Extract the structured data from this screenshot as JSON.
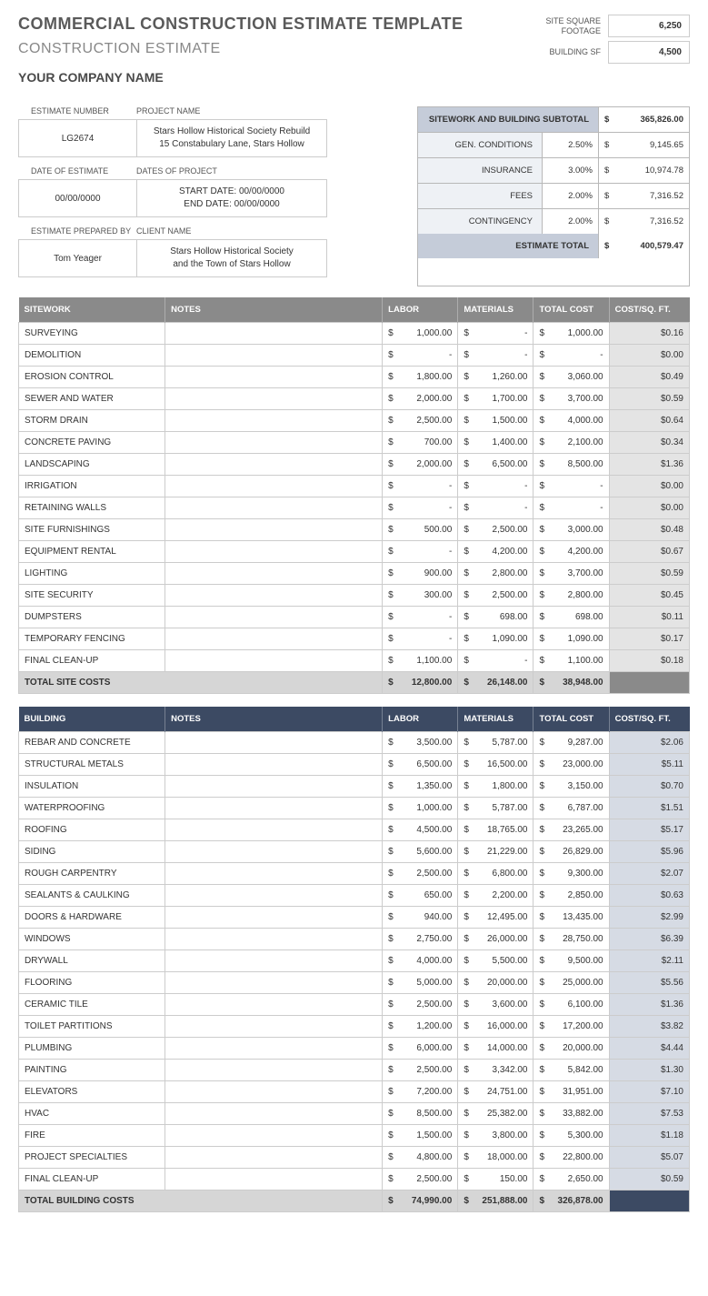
{
  "main_title": "COMMERCIAL CONSTRUCTION ESTIMATE TEMPLATE",
  "subtitle": "CONSTRUCTION ESTIMATE",
  "company_name": "YOUR COMPANY NAME",
  "sf": {
    "site_label": "SITE SQUARE FOOTAGE",
    "site_value": "6,250",
    "building_label": "BUILDING SF",
    "building_value": "4,500"
  },
  "info": [
    {
      "h1": "ESTIMATE NUMBER",
      "h2": "PROJECT NAME",
      "v1": "LG2674",
      "v2": "Stars Hollow Historical Society Rebuild\n15 Constabulary Lane, Stars Hollow"
    },
    {
      "h1": "DATE OF ESTIMATE",
      "h2": "DATES OF PROJECT",
      "v1": "00/00/0000",
      "v2": "START DATE: 00/00/0000\nEND DATE: 00/00/0000"
    },
    {
      "h1": "ESTIMATE PREPARED BY",
      "h2": "CLIENT NAME",
      "v1": "Tom Yeager",
      "v2": "Stars Hollow Historical Society\nand the Town of Stars Hollow"
    }
  ],
  "summary": {
    "subtotal_label": "SITEWORK AND BUILDING SUBTOTAL",
    "subtotal": "365,826.00",
    "rows": [
      {
        "label": "GEN. CONDITIONS",
        "pct": "2.50%",
        "amt": "9,145.65"
      },
      {
        "label": "INSURANCE",
        "pct": "3.00%",
        "amt": "10,974.78"
      },
      {
        "label": "FEES",
        "pct": "2.00%",
        "amt": "7,316.52"
      },
      {
        "label": "CONTINGENCY",
        "pct": "2.00%",
        "amt": "7,316.52"
      }
    ],
    "total_label": "ESTIMATE TOTAL",
    "total": "400,579.47"
  },
  "tables": {
    "headers": {
      "col_notes": "NOTES",
      "col_labor": "LABOR",
      "col_mat": "MATERIALS",
      "col_total": "TOTAL COST",
      "col_sqft": "COST/SQ. FT."
    },
    "sitework": {
      "name": "SITEWORK",
      "rows": [
        {
          "name": "SURVEYING",
          "labor": "1,000.00",
          "mat": "-",
          "total": "1,000.00",
          "sqft": "$0.16"
        },
        {
          "name": "DEMOLITION",
          "labor": "-",
          "mat": "-",
          "total": "-",
          "sqft": "$0.00"
        },
        {
          "name": "EROSION CONTROL",
          "labor": "1,800.00",
          "mat": "1,260.00",
          "total": "3,060.00",
          "sqft": "$0.49"
        },
        {
          "name": "SEWER AND WATER",
          "labor": "2,000.00",
          "mat": "1,700.00",
          "total": "3,700.00",
          "sqft": "$0.59"
        },
        {
          "name": "STORM DRAIN",
          "labor": "2,500.00",
          "mat": "1,500.00",
          "total": "4,000.00",
          "sqft": "$0.64"
        },
        {
          "name": "CONCRETE PAVING",
          "labor": "700.00",
          "mat": "1,400.00",
          "total": "2,100.00",
          "sqft": "$0.34"
        },
        {
          "name": "LANDSCAPING",
          "labor": "2,000.00",
          "mat": "6,500.00",
          "total": "8,500.00",
          "sqft": "$1.36"
        },
        {
          "name": "IRRIGATION",
          "labor": "-",
          "mat": "-",
          "total": "-",
          "sqft": "$0.00"
        },
        {
          "name": "RETAINING WALLS",
          "labor": "-",
          "mat": "-",
          "total": "-",
          "sqft": "$0.00"
        },
        {
          "name": "SITE FURNISHINGS",
          "labor": "500.00",
          "mat": "2,500.00",
          "total": "3,000.00",
          "sqft": "$0.48"
        },
        {
          "name": "EQUIPMENT RENTAL",
          "labor": "-",
          "mat": "4,200.00",
          "total": "4,200.00",
          "sqft": "$0.67"
        },
        {
          "name": "LIGHTING",
          "labor": "900.00",
          "mat": "2,800.00",
          "total": "3,700.00",
          "sqft": "$0.59"
        },
        {
          "name": "SITE SECURITY",
          "labor": "300.00",
          "mat": "2,500.00",
          "total": "2,800.00",
          "sqft": "$0.45"
        },
        {
          "name": "DUMPSTERS",
          "labor": "-",
          "mat": "698.00",
          "total": "698.00",
          "sqft": "$0.11"
        },
        {
          "name": "TEMPORARY FENCING",
          "labor": "-",
          "mat": "1,090.00",
          "total": "1,090.00",
          "sqft": "$0.17"
        },
        {
          "name": "FINAL CLEAN-UP",
          "labor": "1,100.00",
          "mat": "-",
          "total": "1,100.00",
          "sqft": "$0.18"
        }
      ],
      "total": {
        "name": "TOTAL SITE COSTS",
        "labor": "12,800.00",
        "mat": "26,148.00",
        "total": "38,948.00"
      }
    },
    "building": {
      "name": "BUILDING",
      "rows": [
        {
          "name": "REBAR AND CONCRETE",
          "labor": "3,500.00",
          "mat": "5,787.00",
          "total": "9,287.00",
          "sqft": "$2.06"
        },
        {
          "name": "STRUCTURAL METALS",
          "labor": "6,500.00",
          "mat": "16,500.00",
          "total": "23,000.00",
          "sqft": "$5.11"
        },
        {
          "name": "INSULATION",
          "labor": "1,350.00",
          "mat": "1,800.00",
          "total": "3,150.00",
          "sqft": "$0.70"
        },
        {
          "name": "WATERPROOFING",
          "labor": "1,000.00",
          "mat": "5,787.00",
          "total": "6,787.00",
          "sqft": "$1.51"
        },
        {
          "name": "ROOFING",
          "labor": "4,500.00",
          "mat": "18,765.00",
          "total": "23,265.00",
          "sqft": "$5.17"
        },
        {
          "name": "SIDING",
          "labor": "5,600.00",
          "mat": "21,229.00",
          "total": "26,829.00",
          "sqft": "$5.96"
        },
        {
          "name": "ROUGH CARPENTRY",
          "labor": "2,500.00",
          "mat": "6,800.00",
          "total": "9,300.00",
          "sqft": "$2.07"
        },
        {
          "name": "SEALANTS & CAULKING",
          "labor": "650.00",
          "mat": "2,200.00",
          "total": "2,850.00",
          "sqft": "$0.63"
        },
        {
          "name": "DOORS & HARDWARE",
          "labor": "940.00",
          "mat": "12,495.00",
          "total": "13,435.00",
          "sqft": "$2.99"
        },
        {
          "name": "WINDOWS",
          "labor": "2,750.00",
          "mat": "26,000.00",
          "total": "28,750.00",
          "sqft": "$6.39"
        },
        {
          "name": "DRYWALL",
          "labor": "4,000.00",
          "mat": "5,500.00",
          "total": "9,500.00",
          "sqft": "$2.11"
        },
        {
          "name": "FLOORING",
          "labor": "5,000.00",
          "mat": "20,000.00",
          "total": "25,000.00",
          "sqft": "$5.56"
        },
        {
          "name": "CERAMIC TILE",
          "labor": "2,500.00",
          "mat": "3,600.00",
          "total": "6,100.00",
          "sqft": "$1.36"
        },
        {
          "name": "TOILET PARTITIONS",
          "labor": "1,200.00",
          "mat": "16,000.00",
          "total": "17,200.00",
          "sqft": "$3.82"
        },
        {
          "name": "PLUMBING",
          "labor": "6,000.00",
          "mat": "14,000.00",
          "total": "20,000.00",
          "sqft": "$4.44"
        },
        {
          "name": "PAINTING",
          "labor": "2,500.00",
          "mat": "3,342.00",
          "total": "5,842.00",
          "sqft": "$1.30"
        },
        {
          "name": "ELEVATORS",
          "labor": "7,200.00",
          "mat": "24,751.00",
          "total": "31,951.00",
          "sqft": "$7.10"
        },
        {
          "name": "HVAC",
          "labor": "8,500.00",
          "mat": "25,382.00",
          "total": "33,882.00",
          "sqft": "$7.53"
        },
        {
          "name": "FIRE",
          "labor": "1,500.00",
          "mat": "3,800.00",
          "total": "5,300.00",
          "sqft": "$1.18"
        },
        {
          "name": "PROJECT SPECIALTIES",
          "labor": "4,800.00",
          "mat": "18,000.00",
          "total": "22,800.00",
          "sqft": "$5.07"
        },
        {
          "name": "FINAL CLEAN-UP",
          "labor": "2,500.00",
          "mat": "150.00",
          "total": "2,650.00",
          "sqft": "$0.59"
        }
      ],
      "total": {
        "name": "TOTAL BUILDING COSTS",
        "labor": "74,990.00",
        "mat": "251,888.00",
        "total": "326,878.00"
      }
    }
  }
}
